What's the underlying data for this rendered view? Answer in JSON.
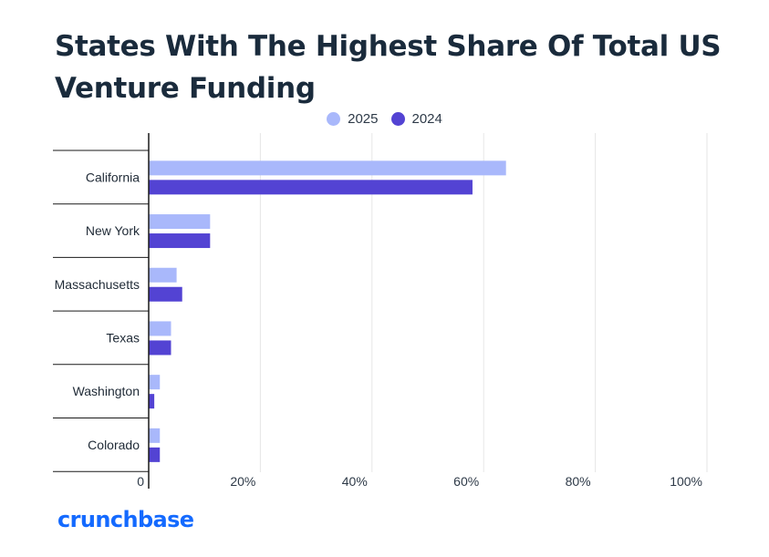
{
  "title": "States With The Highest Share Of Total US Venture Funding",
  "brand": "crunchbase",
  "colors": {
    "series_2025": "#a9b8fb",
    "series_2024": "#5343d3",
    "title": "#1a2b3c",
    "brand": "#146aff",
    "grid": "#e6e6e6",
    "axis": "#1a1a1a"
  },
  "chart_data": {
    "type": "bar",
    "orientation": "horizontal",
    "categories": [
      "California",
      "New York",
      "Massachusetts",
      "Texas",
      "Washington",
      "Colorado"
    ],
    "series": [
      {
        "name": "2025",
        "values": [
          64,
          11,
          5,
          4,
          2,
          2
        ]
      },
      {
        "name": "2024",
        "values": [
          58,
          11,
          6,
          4,
          1,
          2
        ]
      }
    ],
    "xlim": [
      0,
      100
    ],
    "x_ticks": [
      "0",
      "20%",
      "40%",
      "60%",
      "80%",
      "100%"
    ],
    "x_tick_values": [
      0,
      20,
      40,
      60,
      80,
      100
    ],
    "legend": "top-center",
    "grid": true
  }
}
